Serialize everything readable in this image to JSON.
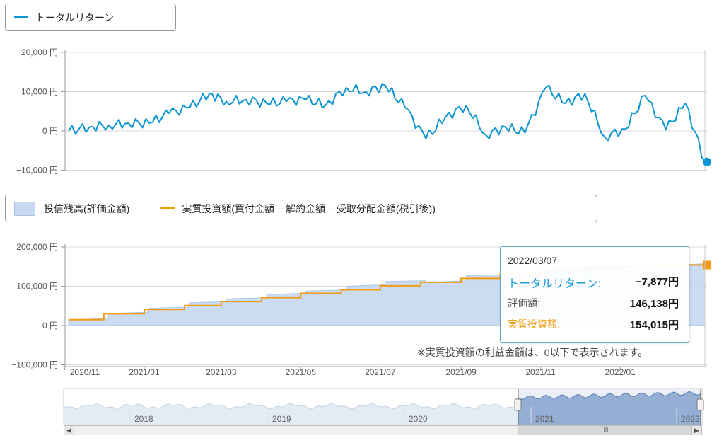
{
  "legend_top": {
    "series": [
      {
        "label": "トータルリターン",
        "color": "#0b95d1"
      }
    ]
  },
  "legend_bottom": {
    "series": [
      {
        "label": "投信残高(評価金額)",
        "color": "#c6d9f1"
      },
      {
        "label": "実質投資額(買付金額 − 解約金額 − 受取分配金額(税引後))",
        "color": "#f39c12"
      }
    ]
  },
  "tooltip": {
    "date": "2022/03/07",
    "rows": [
      {
        "label": "トータルリターン:",
        "value": "−7,877円"
      },
      {
        "label": "評価額:",
        "value": "146,138円"
      },
      {
        "label": "実質投資額:",
        "value": "154,015円"
      }
    ]
  },
  "note": "※実質投資額の利益金額は、0以下で表示されます。",
  "navigator": {
    "year_labels": [
      "2018",
      "2019",
      "2020",
      "2021",
      "2022"
    ]
  },
  "chart_data": [
    {
      "type": "line",
      "y_ticks": [
        "20,000 円",
        "10,000 円",
        "0 円",
        "−10,000 円"
      ],
      "ylim": [
        -10000,
        20000
      ],
      "series": [
        {
          "name": "トータルリターン",
          "color": "#0b95d1",
          "x": [
            "2020-11-04",
            "2020-11-20",
            "2020-12-05",
            "2020-12-20",
            "2021-01-05",
            "2021-01-20",
            "2021-02-05",
            "2021-02-20",
            "2021-03-05",
            "2021-03-20",
            "2021-04-05",
            "2021-04-20",
            "2021-05-05",
            "2021-05-20",
            "2021-06-05",
            "2021-06-20",
            "2021-07-05",
            "2021-07-20",
            "2021-08-05",
            "2021-08-20",
            "2021-09-05",
            "2021-09-20",
            "2021-10-05",
            "2021-10-20",
            "2021-11-05",
            "2021-11-20",
            "2021-12-05",
            "2021-12-20",
            "2022-01-05",
            "2022-01-20",
            "2022-02-05",
            "2022-02-20",
            "2022-03-07"
          ],
          "values": [
            0,
            1000,
            1500,
            2000,
            2000,
            4500,
            6000,
            9500,
            7500,
            8000,
            7000,
            7500,
            8000,
            6500,
            11000,
            10000,
            11500,
            6000,
            -2000,
            3500,
            6500,
            -1000,
            1000,
            -500,
            11000,
            7000,
            9500,
            -1500,
            500,
            9000,
            300,
            7000,
            -7877
          ]
        }
      ]
    },
    {
      "type": "area",
      "y_ticks": [
        "200,000 円",
        "100,000 円",
        "0 円",
        "−100,000 円"
      ],
      "ylim": [
        -100000,
        200000
      ],
      "categories": [
        "2020/11",
        "2021/01",
        "2021/03",
        "2021/05",
        "2021/07",
        "2021/09",
        "2021/11",
        "2022/01"
      ],
      "series": [
        {
          "name": "投信残高(評価金額)",
          "color": "#c6d9f1",
          "x": [
            "2020-11-04",
            "2020-12-05",
            "2021-01-05",
            "2021-02-05",
            "2021-03-05",
            "2021-04-05",
            "2021-05-05",
            "2021-06-05",
            "2021-07-05",
            "2021-08-05",
            "2021-09-05",
            "2021-10-05",
            "2021-11-05",
            "2021-12-05",
            "2022-01-05",
            "2022-02-05",
            "2022-03-07"
          ],
          "values": [
            15000,
            31000,
            44000,
            58000,
            68000,
            79000,
            88000,
            100000,
            112000,
            110000,
            127000,
            128000,
            142000,
            150000,
            148000,
            153000,
            146138
          ]
        },
        {
          "name": "実質投資額(買付金額 − 解約金額 − 受取分配金額(税引後))",
          "color": "#f39c12",
          "x": [
            "2020-11-04",
            "2020-12-01",
            "2021-01-01",
            "2021-02-01",
            "2021-03-01",
            "2021-04-01",
            "2021-05-01",
            "2021-06-01",
            "2021-07-01",
            "2021-08-01",
            "2021-09-01",
            "2021-10-01",
            "2021-11-01",
            "2021-12-01",
            "2022-01-01",
            "2022-02-01",
            "2022-03-07"
          ],
          "values": [
            15000,
            30000,
            41000,
            51000,
            61000,
            71000,
            82000,
            91000,
            101000,
            110000,
            120000,
            130000,
            137000,
            144000,
            150000,
            154015,
            154015
          ]
        }
      ]
    }
  ]
}
